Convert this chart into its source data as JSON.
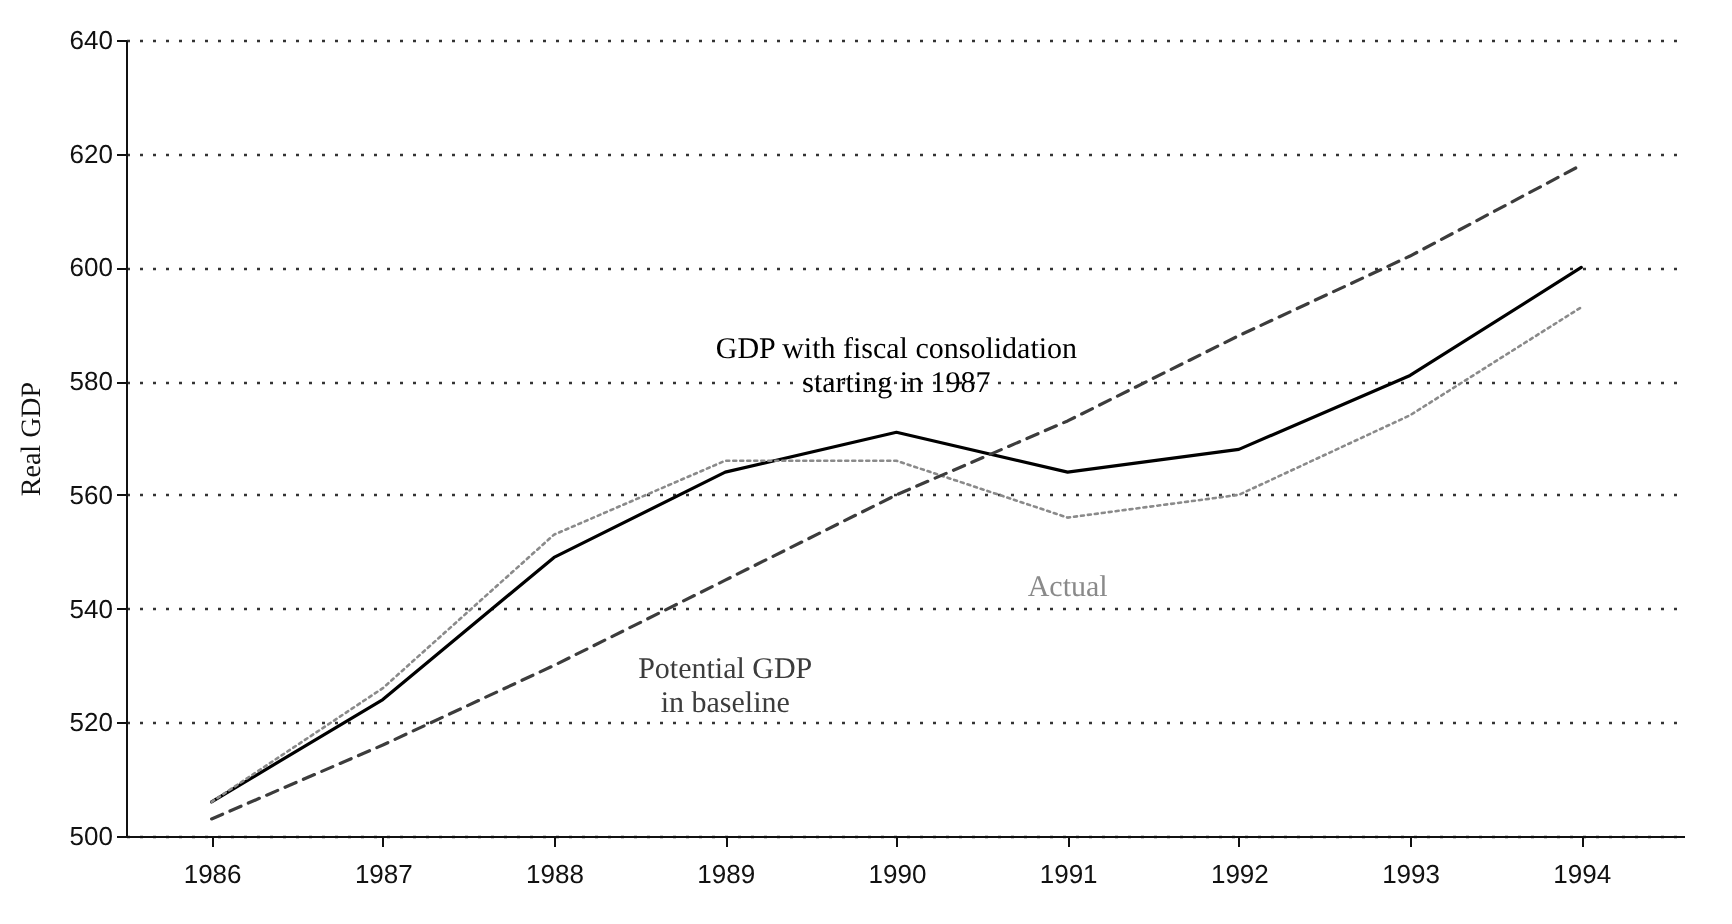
{
  "chart_data": {
    "type": "line",
    "ylabel": "Real GDP",
    "x": [
      1986,
      1987,
      1988,
      1989,
      1990,
      1991,
      1992,
      1993,
      1994
    ],
    "xlim": [
      1985.5,
      1994.6
    ],
    "xticks": [
      1986,
      1987,
      1988,
      1989,
      1990,
      1991,
      1992,
      1993,
      1994
    ],
    "ylim": [
      500,
      640
    ],
    "yticks": [
      500,
      520,
      540,
      560,
      580,
      600,
      620,
      640
    ],
    "grid": "y",
    "series": [
      {
        "name": "GDP with fiscal consolidation starting in 1987",
        "color": "#000000",
        "line_style": "solid",
        "values": [
          506,
          524,
          549,
          564,
          571,
          564,
          568,
          581,
          600
        ]
      },
      {
        "name": "Actual",
        "color": "#8a8a8a",
        "line_style": "dotted",
        "values": [
          506,
          526,
          553,
          566,
          566,
          556,
          560,
          574,
          593
        ]
      },
      {
        "name": "Potential GDP in baseline",
        "color": "#3c3c3c",
        "line_style": "dashed",
        "values": [
          503,
          516,
          530,
          545,
          560,
          573,
          588,
          602,
          618
        ]
      }
    ]
  }
}
